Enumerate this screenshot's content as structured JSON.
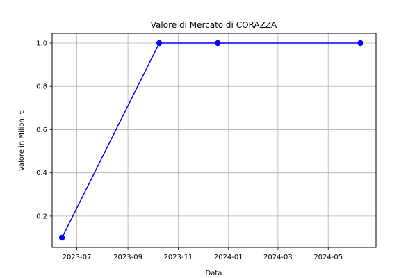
{
  "chart_data": {
    "type": "line",
    "title": "Valore di Mercato di CORAZZA",
    "xlabel": "Data",
    "ylabel": "Valore in Milioni €",
    "x_type": "date",
    "xlim": [
      "2023-06-01",
      "2024-06-28"
    ],
    "ylim": [
      0.055,
      1.045
    ],
    "x_ticks": [
      {
        "date": "2023-07-01",
        "label": "2023-07"
      },
      {
        "date": "2023-09-01",
        "label": "2023-09"
      },
      {
        "date": "2023-11-01",
        "label": "2023-11"
      },
      {
        "date": "2024-01-01",
        "label": "2024-01"
      },
      {
        "date": "2024-03-01",
        "label": "2024-03"
      },
      {
        "date": "2024-05-01",
        "label": "2024-05"
      }
    ],
    "y_ticks": [
      {
        "value": 0.2,
        "label": "0.2"
      },
      {
        "value": 0.4,
        "label": "0.4"
      },
      {
        "value": 0.6,
        "label": "0.6"
      },
      {
        "value": 0.8,
        "label": "0.8"
      },
      {
        "value": 1.0,
        "label": "1.0"
      }
    ],
    "grid": true,
    "series": [
      {
        "color": "#0000ff",
        "marker": "circle",
        "points": [
          {
            "x": "2023-06-13",
            "y": 0.1
          },
          {
            "x": "2023-10-09",
            "y": 1.0
          },
          {
            "x": "2023-12-19",
            "y": 1.0
          },
          {
            "x": "2024-06-09",
            "y": 1.0
          }
        ]
      }
    ]
  }
}
